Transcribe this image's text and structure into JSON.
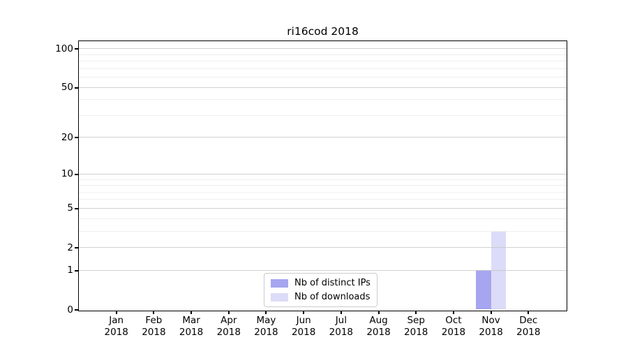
{
  "title": "ri16cod 2018",
  "chart_data": {
    "type": "bar",
    "title": "ri16cod 2018",
    "xlabel": "",
    "ylabel": "",
    "categories": [
      "Jan 2018",
      "Feb 2018",
      "Mar 2018",
      "Apr 2018",
      "May 2018",
      "Jun 2018",
      "Jul 2018",
      "Aug 2018",
      "Sep 2018",
      "Oct 2018",
      "Nov 2018",
      "Dec 2018"
    ],
    "category_month": [
      "Jan",
      "Feb",
      "Mar",
      "Apr",
      "May",
      "Jun",
      "Jul",
      "Aug",
      "Sep",
      "Oct",
      "Nov",
      "Dec"
    ],
    "category_year": [
      "2018",
      "2018",
      "2018",
      "2018",
      "2018",
      "2018",
      "2018",
      "2018",
      "2018",
      "2018",
      "2018",
      "2018"
    ],
    "series": [
      {
        "name": "Nb of distinct IPs",
        "color": "#a6a6f0",
        "values": [
          0,
          0,
          0,
          0,
          0,
          0,
          0,
          0,
          0,
          0,
          1,
          0
        ]
      },
      {
        "name": "Nb of downloads",
        "color": "#dcdcf8",
        "values": [
          0,
          0,
          0,
          0,
          0,
          0,
          0,
          0,
          0,
          0,
          3,
          0
        ]
      }
    ],
    "y_scale": "log1p",
    "ylim": [
      0,
      113.6
    ],
    "y_major_ticks": [
      0,
      1,
      2,
      5,
      10,
      20,
      50,
      100
    ],
    "y_minor_ticks": [
      3,
      4,
      6,
      7,
      8,
      9,
      30,
      40,
      60,
      70,
      80,
      90
    ],
    "grid": true,
    "grid_over_bars": true,
    "legend_position": "lower center"
  },
  "colors": {
    "bar_distinct_ips": "#a6a6f0",
    "bar_downloads": "#dcdcf8",
    "grid_major": "#c6c6c6",
    "grid_minor": "#ededed",
    "axis": "#000000",
    "background": "#ffffff",
    "legend_border": "#cccccc",
    "text": "#000000"
  }
}
